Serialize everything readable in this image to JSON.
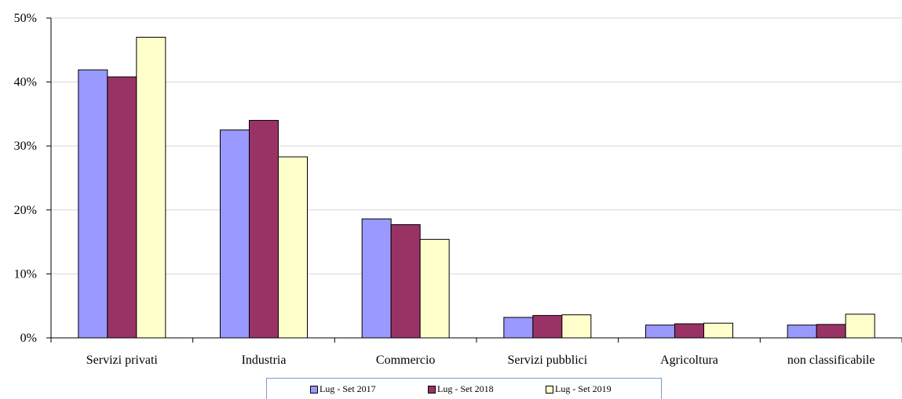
{
  "chart_data": {
    "type": "bar",
    "categories": [
      "Servizi privati",
      "Industria",
      "Commercio",
      "Servizi pubblici",
      "Agricoltura",
      "non classificabile"
    ],
    "series": [
      {
        "name": "Lug - Set 2017",
        "color": "#9999ff",
        "values": [
          41.9,
          32.5,
          18.6,
          3.2,
          2.0,
          2.0
        ]
      },
      {
        "name": "Lug - Set 2018",
        "color": "#993366",
        "values": [
          40.8,
          34.0,
          17.7,
          3.5,
          2.2,
          2.1
        ]
      },
      {
        "name": "Lug - Set 2019",
        "color": "#ffffcc",
        "values": [
          47.0,
          28.3,
          15.4,
          3.6,
          2.3,
          3.7
        ]
      }
    ],
    "y_ticks": [
      "0%",
      "10%",
      "20%",
      "30%",
      "40%",
      "50%"
    ],
    "ylim": [
      0,
      50
    ],
    "grid": true,
    "legend_position": "bottom"
  }
}
